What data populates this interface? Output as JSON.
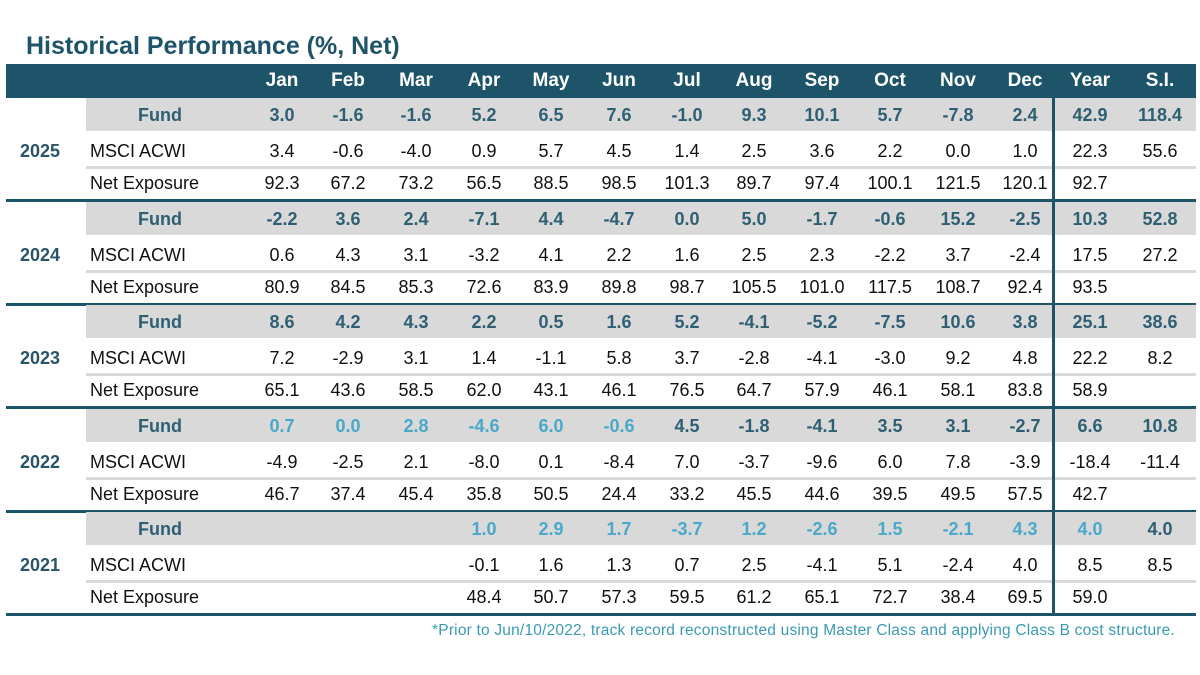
{
  "title": "Historical Performance (%, Net)",
  "columns": [
    "Jan",
    "Feb",
    "Mar",
    "Apr",
    "May",
    "Jun",
    "Jul",
    "Aug",
    "Sep",
    "Oct",
    "Nov",
    "Dec",
    "Year",
    "S.I."
  ],
  "row_labels": {
    "fund": "Fund",
    "msci": "MSCI ACWI",
    "net": "Net Exposure"
  },
  "colors": {
    "header": "#1d5469",
    "band": "#d9d9d9",
    "fund_text": "#2f5f73",
    "reconstructed": "#4aa8c8"
  },
  "years": [
    {
      "year": "2025",
      "fund": [
        "3.0",
        "-1.6",
        "-1.6",
        "5.2",
        "6.5",
        "7.6",
        "-1.0",
        "9.3",
        "10.1",
        "5.7",
        "-7.8",
        "2.4",
        "42.9",
        "118.4"
      ],
      "msci": [
        "3.4",
        "-0.6",
        "-4.0",
        "0.9",
        "5.7",
        "4.5",
        "1.4",
        "2.5",
        "3.6",
        "2.2",
        "0.0",
        "1.0",
        "22.3",
        "55.6"
      ],
      "net": [
        "92.3",
        "67.2",
        "73.2",
        "56.5",
        "88.5",
        "98.5",
        "101.3",
        "89.7",
        "97.4",
        "100.1",
        "121.5",
        "120.1",
        "92.7",
        ""
      ],
      "fund_reconstructed": []
    },
    {
      "year": "2024",
      "fund": [
        "-2.2",
        "3.6",
        "2.4",
        "-7.1",
        "4.4",
        "-4.7",
        "0.0",
        "5.0",
        "-1.7",
        "-0.6",
        "15.2",
        "-2.5",
        "10.3",
        "52.8"
      ],
      "msci": [
        "0.6",
        "4.3",
        "3.1",
        "-3.2",
        "4.1",
        "2.2",
        "1.6",
        "2.5",
        "2.3",
        "-2.2",
        "3.7",
        "-2.4",
        "17.5",
        "27.2"
      ],
      "net": [
        "80.9",
        "84.5",
        "85.3",
        "72.6",
        "83.9",
        "89.8",
        "98.7",
        "105.5",
        "101.0",
        "117.5",
        "108.7",
        "92.4",
        "93.5",
        ""
      ],
      "fund_reconstructed": []
    },
    {
      "year": "2023",
      "fund": [
        "8.6",
        "4.2",
        "4.3",
        "2.2",
        "0.5",
        "1.6",
        "5.2",
        "-4.1",
        "-5.2",
        "-7.5",
        "10.6",
        "3.8",
        "25.1",
        "38.6"
      ],
      "msci": [
        "7.2",
        "-2.9",
        "3.1",
        "1.4",
        "-1.1",
        "5.8",
        "3.7",
        "-2.8",
        "-4.1",
        "-3.0",
        "9.2",
        "4.8",
        "22.2",
        "8.2"
      ],
      "net": [
        "65.1",
        "43.6",
        "58.5",
        "62.0",
        "43.1",
        "46.1",
        "76.5",
        "64.7",
        "57.9",
        "46.1",
        "58.1",
        "83.8",
        "58.9",
        ""
      ],
      "fund_reconstructed": []
    },
    {
      "year": "2022",
      "fund": [
        "0.7",
        "0.0",
        "2.8",
        "-4.6",
        "6.0",
        "-0.6",
        "4.5",
        "-1.8",
        "-4.1",
        "3.5",
        "3.1",
        "-2.7",
        "6.6",
        "10.8"
      ],
      "msci": [
        "-4.9",
        "-2.5",
        "2.1",
        "-8.0",
        "0.1",
        "-8.4",
        "7.0",
        "-3.7",
        "-9.6",
        "6.0",
        "7.8",
        "-3.9",
        "-18.4",
        "-11.4"
      ],
      "net": [
        "46.7",
        "37.4",
        "45.4",
        "35.8",
        "50.5",
        "24.4",
        "33.2",
        "45.5",
        "44.6",
        "39.5",
        "49.5",
        "57.5",
        "42.7",
        ""
      ],
      "fund_reconstructed": [
        0,
        1,
        2,
        3,
        4,
        5
      ]
    },
    {
      "year": "2021",
      "fund": [
        "",
        "",
        "",
        "1.0",
        "2.9",
        "1.7",
        "-3.7",
        "1.2",
        "-2.6",
        "1.5",
        "-2.1",
        "4.3",
        "4.0",
        "4.0"
      ],
      "msci": [
        "",
        "",
        "",
        "-0.1",
        "1.6",
        "1.3",
        "0.7",
        "2.5",
        "-4.1",
        "5.1",
        "-2.4",
        "4.0",
        "8.5",
        "8.5"
      ],
      "net": [
        "",
        "",
        "",
        "48.4",
        "50.7",
        "57.3",
        "59.5",
        "61.2",
        "65.1",
        "72.7",
        "38.4",
        "69.5",
        "59.0",
        ""
      ],
      "fund_reconstructed": [
        3,
        4,
        5,
        6,
        7,
        8,
        9,
        10,
        11,
        12
      ]
    }
  ],
  "footnote": "*Prior to Jun/10/2022, track record reconstructed using Master Class and applying Class B cost structure."
}
